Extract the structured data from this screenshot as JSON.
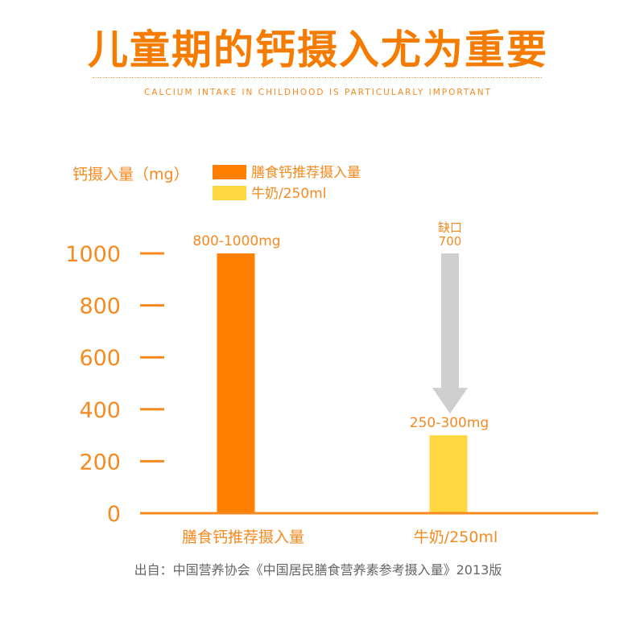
{
  "header": {
    "title": "儿童期的钙摄入尤为重要",
    "subtitle": "CALCIUM INTAKE IN CHILDHOOD IS PARTICULARLY IMPORTANT"
  },
  "chart_data": {
    "type": "bar",
    "title": "",
    "ylabel": "钙摄入量（mg）",
    "xlabel": "",
    "ylim": [
      0,
      1000
    ],
    "yticks": [
      0,
      200,
      400,
      600,
      800,
      1000
    ],
    "categories": [
      "膳食钙推荐摄入量",
      "牛奶/250ml"
    ],
    "series": [
      {
        "name": "膳食钙推荐摄入量",
        "color": "#ff7f00",
        "values": [
          1000,
          null
        ],
        "data_label": "800-1000mg"
      },
      {
        "name": "牛奶/250ml",
        "color": "#ffd740",
        "values": [
          null,
          300
        ],
        "data_label": "250-300mg"
      }
    ],
    "legend": [
      {
        "label": "膳食钙推荐摄入量",
        "color": "#ff7f00"
      },
      {
        "label": "牛奶/250ml",
        "color": "#ffd740"
      }
    ],
    "annotation": {
      "label": "缺口",
      "value": "700",
      "from": 1000,
      "to": 300,
      "color": "#cfcfcf"
    }
  },
  "footer": {
    "source": "出自：中国营养协会《中国居民膳食营养素参考摄入量》2013版"
  }
}
